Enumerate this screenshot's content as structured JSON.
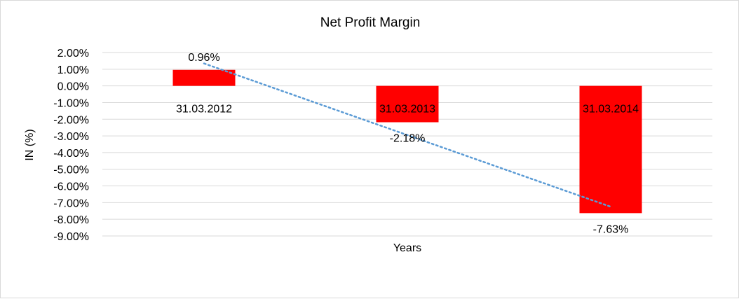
{
  "chart_data": {
    "type": "bar",
    "title": "Net Profit Margin",
    "xlabel": "Years",
    "ylabel": "IN (%)",
    "categories": [
      "31.03.2012",
      "31.03.2013",
      "31.03.2014"
    ],
    "values": [
      0.96,
      -2.18,
      -7.63
    ],
    "data_labels": [
      "0.96%",
      "-2.18%",
      "-7.63%"
    ],
    "ylim": [
      -9,
      2
    ],
    "yticks": [
      "2.00%",
      "1.00%",
      "0.00%",
      "-1.00%",
      "-2.00%",
      "-3.00%",
      "-4.00%",
      "-5.00%",
      "-6.00%",
      "-7.00%",
      "-8.00%",
      "-9.00%"
    ],
    "grid": true,
    "bar_color": "#ff0000",
    "trendline": {
      "type": "linear",
      "style": "dotted",
      "color": "#5b9bd5"
    }
  }
}
